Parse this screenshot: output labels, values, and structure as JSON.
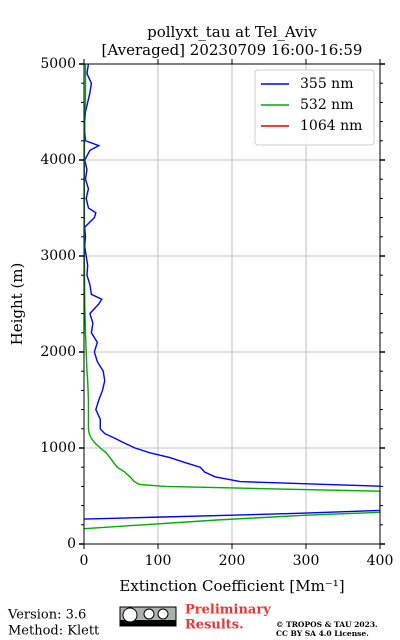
{
  "chart_data": {
    "type": "line",
    "title": [
      "pollyxt_tau at Tel_Aviv",
      "[Averaged] 20230709 16:00-16:59"
    ],
    "x_label": "Extinction Coefficient [Mm⁻¹]",
    "y_label": "Height (m)",
    "xlim": [
      0,
      400
    ],
    "xticks": [
      0,
      100,
      200,
      300,
      400
    ],
    "ylim": [
      0,
      5000
    ],
    "yticks": [
      0,
      1000,
      2000,
      3000,
      4000,
      5000
    ],
    "grid": true,
    "legend": "upper right",
    "series": [
      {
        "name": "355 nm",
        "color": "#0000ff",
        "x": [
          0,
          100,
          200,
          290,
          400,
          410,
          211,
          177,
          163,
          157,
          136,
          116,
          89,
          69,
          55,
          42,
          28,
          22,
          22,
          16,
          20,
          25,
          28,
          26,
          18,
          14,
          18,
          10,
          12,
          8,
          20,
          24,
          10,
          8,
          4,
          5,
          3,
          1,
          2,
          1,
          14,
          16,
          6,
          3,
          6,
          2,
          4,
          1,
          8,
          20,
          2,
          1,
          1,
          2,
          5,
          8,
          10,
          4,
          6
        ],
        "y": [
          260,
          280,
          300,
          320,
          350,
          600,
          650,
          700,
          750,
          800,
          850,
          900,
          950,
          1000,
          1050,
          1100,
          1150,
          1200,
          1300,
          1400,
          1500,
          1600,
          1700,
          1800,
          1900,
          2000,
          2100,
          2200,
          2300,
          2400,
          2500,
          2550,
          2600,
          2700,
          2800,
          2900,
          3000,
          3100,
          3200,
          3300,
          3400,
          3450,
          3500,
          3600,
          3700,
          3800,
          3900,
          4000,
          4100,
          4150,
          4200,
          4300,
          4400,
          4500,
          4600,
          4700,
          4800,
          4900,
          5000
        ]
      },
      {
        "name": "532 nm",
        "color": "#00aa00",
        "x": [
          0,
          80,
          180,
          300,
          400,
          400,
          250,
          110,
          75,
          68,
          62,
          55,
          45,
          40,
          35,
          30,
          22,
          15,
          10,
          7,
          6,
          6,
          6,
          5,
          4,
          3,
          2,
          1,
          0.5,
          0.5,
          0.5,
          1,
          2,
          2,
          2
        ],
        "y": [
          160,
          200,
          250,
          300,
          330,
          550,
          575,
          600,
          620,
          650,
          700,
          750,
          800,
          850,
          900,
          950,
          1000,
          1050,
          1100,
          1150,
          1200,
          1300,
          1500,
          1700,
          1800,
          2000,
          2200,
          2500,
          3000,
          3500,
          4000,
          4500,
          4600,
          4700,
          5000
        ]
      },
      {
        "name": "1064 nm",
        "color": "#dd0000",
        "x": [],
        "y": []
      }
    ]
  },
  "footer": {
    "version": "Version: 3.6",
    "method": "Method: Klett",
    "preliminary": [
      "Preliminary",
      "Results."
    ],
    "copyright": [
      "© TROPOS & TAU 2023.",
      "CC BY SA 4.0 License."
    ]
  }
}
